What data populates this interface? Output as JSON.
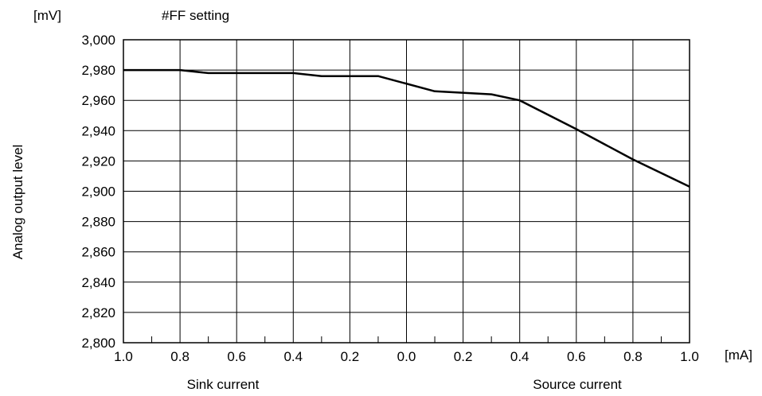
{
  "chart_data": {
    "type": "line",
    "title": "#FF setting",
    "y_unit": "[mV]",
    "x_unit": "[mA]",
    "ylabel": "Analog output level",
    "x_group_labels": {
      "left": "Sink current",
      "right": "Source current"
    },
    "ylim": [
      2800,
      3000
    ],
    "y_ticks": [
      "2,800",
      "2,820",
      "2,840",
      "2,860",
      "2,880",
      "2,900",
      "2,920",
      "2,940",
      "2,960",
      "2,980",
      "3,000"
    ],
    "x_ticks": [
      "1.0",
      "0.8",
      "0.6",
      "0.4",
      "0.2",
      "0.0",
      "0.2",
      "0.4",
      "0.6",
      "0.8",
      "1.0"
    ],
    "grid": true,
    "series": [
      {
        "x": [
          -1.0,
          -0.8,
          -0.7,
          -0.4,
          -0.3,
          -0.1,
          0.1,
          0.3,
          0.4,
          0.6,
          0.8,
          1.0
        ],
        "values": [
          2980,
          2980,
          2978,
          2978,
          2976,
          2976,
          2966,
          2964,
          2960,
          2941,
          2921,
          2903
        ]
      }
    ]
  }
}
